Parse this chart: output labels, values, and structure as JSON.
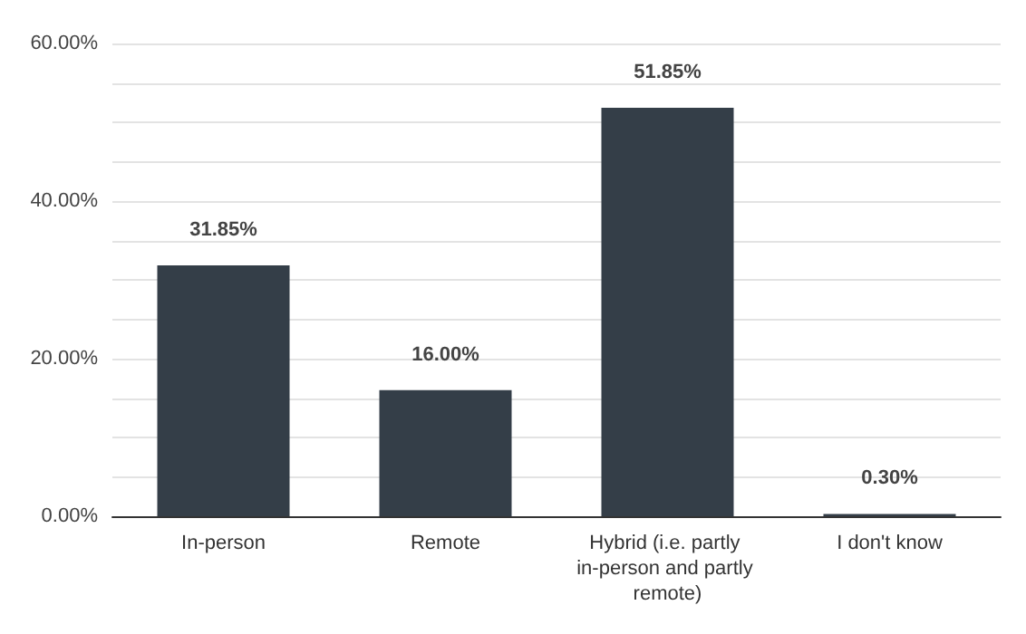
{
  "chart_data": {
    "type": "bar",
    "categories": [
      "In-person",
      "Remote",
      "Hybrid (i.e. partly in-person and partly remote)",
      "I don't know"
    ],
    "values": [
      31.85,
      16.0,
      51.85,
      0.3
    ],
    "value_labels": [
      "31.85%",
      "16.00%",
      "51.85%",
      "0.30%"
    ],
    "color": "#343e48",
    "ylim": [
      0,
      60
    ],
    "yticks": [
      {
        "value": 0,
        "label": "0.00%"
      },
      {
        "value": 5,
        "label": null
      },
      {
        "value": 10,
        "label": null
      },
      {
        "value": 15,
        "label": null
      },
      {
        "value": 20,
        "label": "20.00%"
      },
      {
        "value": 25,
        "label": null
      },
      {
        "value": 30,
        "label": null
      },
      {
        "value": 35,
        "label": null
      },
      {
        "value": 40,
        "label": "40.00%"
      },
      {
        "value": 45,
        "label": null
      },
      {
        "value": 50,
        "label": null
      },
      {
        "value": 55,
        "label": null
      },
      {
        "value": 60,
        "label": "60.00%"
      }
    ],
    "grid": "y"
  }
}
